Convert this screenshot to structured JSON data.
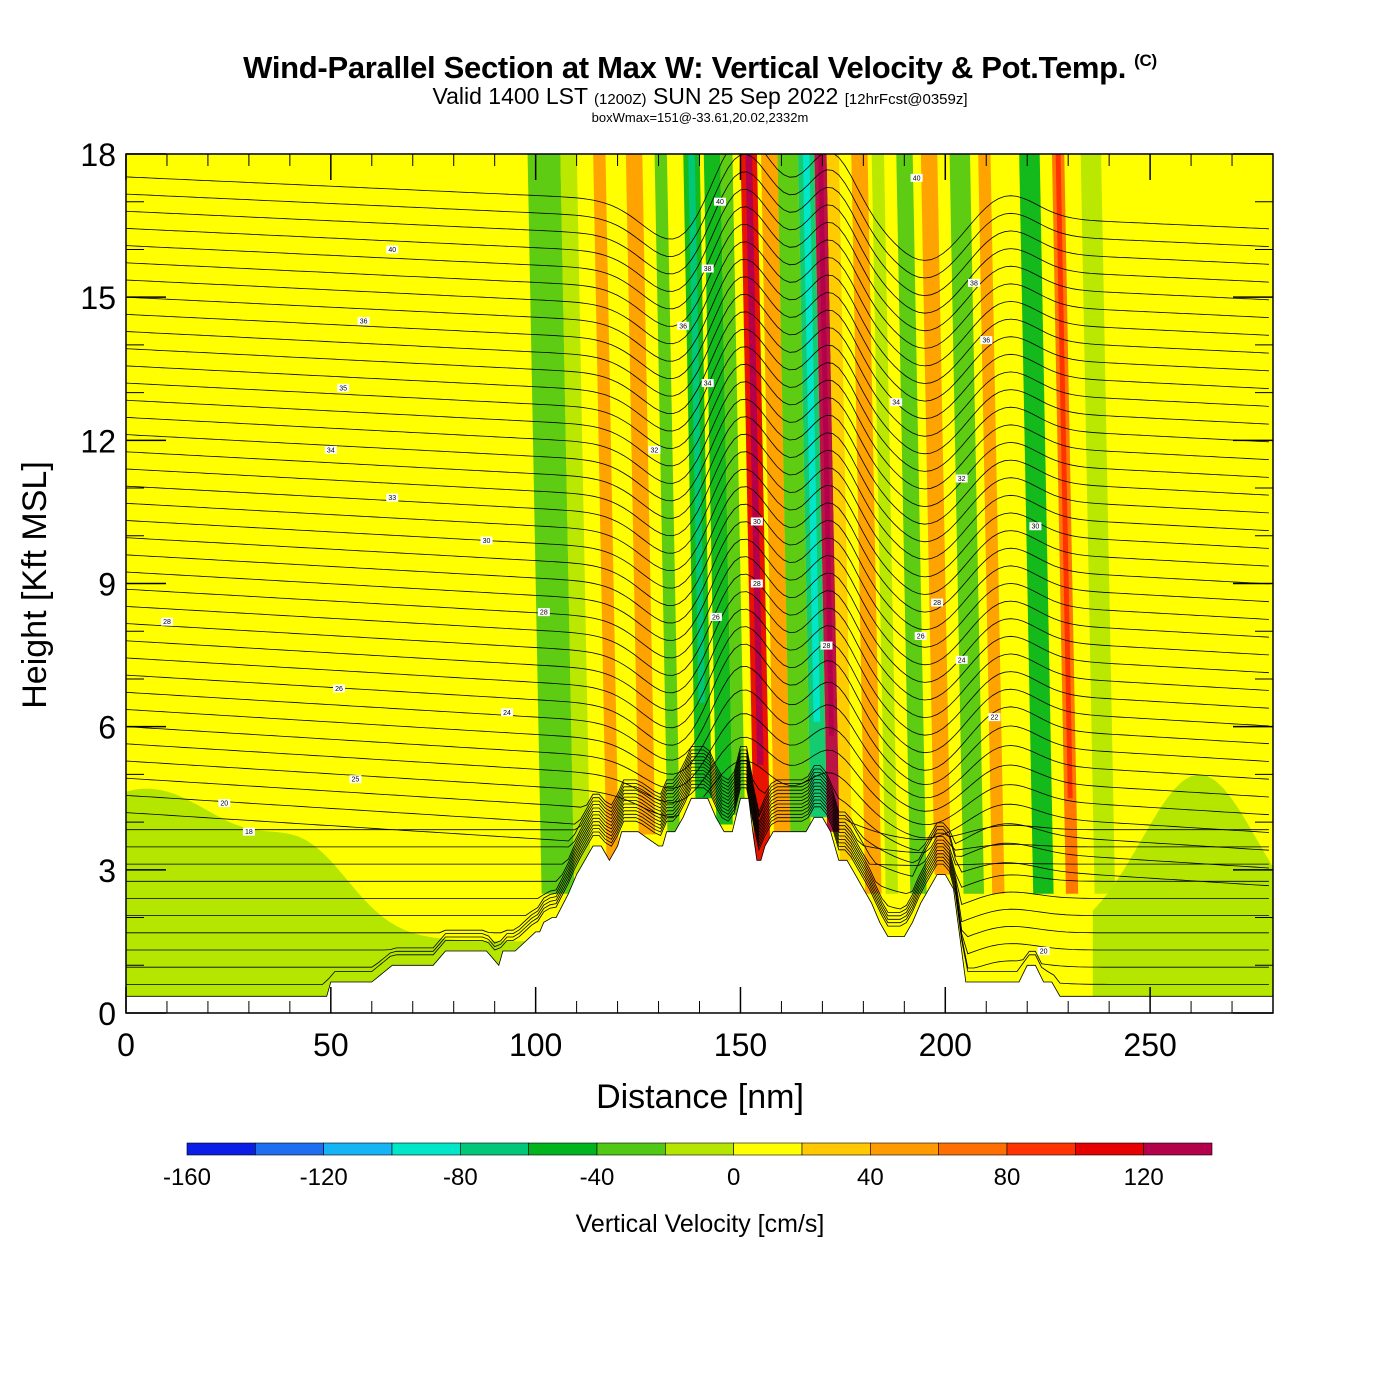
{
  "header": {
    "title": "Wind-Parallel Section at Max W: Vertical Velocity & Pot.Temp.",
    "copyright": "(C)",
    "valid_prefix": "Valid 1400 LST",
    "valid_zulu": "(1200Z)",
    "valid_date": "SUN 25 Sep 2022",
    "forecast": "[12hrFcst@0359z]",
    "box_info": "boxWmax=151@-33.61,20.02,2332m"
  },
  "chart_data": {
    "type": "heatmap",
    "title": "Wind-Parallel Section at Max W: Vertical Velocity & Pot.Temp.",
    "xlabel": "Distance [nm]",
    "ylabel": "Height [Kft MSL]",
    "xlim": [
      0,
      280
    ],
    "ylim": [
      0,
      18
    ],
    "x_ticks": [
      0,
      50,
      100,
      150,
      200,
      250
    ],
    "y_ticks": [
      0,
      3,
      6,
      9,
      12,
      15,
      18
    ],
    "colorbar": {
      "title": "Vertical Velocity [cm/s]",
      "boundaries": [
        -160,
        -140,
        -120,
        -100,
        -80,
        -60,
        -40,
        -20,
        0,
        20,
        40,
        60,
        80,
        100,
        120,
        140
      ],
      "tick_labels": [
        "-160",
        "-120",
        "-80",
        "-40",
        "0",
        "40",
        "80",
        "120"
      ],
      "tick_values": [
        -160,
        -120,
        -80,
        -40,
        0,
        40,
        80,
        120
      ],
      "colors": [
        "#0a1ee6",
        "#1e6ef0",
        "#14b4f5",
        "#00e6c8",
        "#00c878",
        "#00b41e",
        "#50c814",
        "#b4e600",
        "#ffff00",
        "#ffc800",
        "#ff9b00",
        "#ff6e00",
        "#ff3200",
        "#e60000",
        "#b4004b"
      ]
    },
    "velocity_bands": [
      {
        "x": 102,
        "width": 8,
        "value": -40
      },
      {
        "x": 110,
        "width": 4,
        "value": -10
      },
      {
        "x": 118,
        "width": 3,
        "value": 40
      },
      {
        "x": 126,
        "width": 4,
        "value": 50
      },
      {
        "x": 133,
        "width": 3,
        "value": -30
      },
      {
        "x": 140,
        "width": 4,
        "value": -60
      },
      {
        "x": 145,
        "width": 4,
        "value": -50
      },
      {
        "x": 149,
        "width": 3,
        "value": -30
      },
      {
        "x": 154,
        "width": 4,
        "value": 110
      },
      {
        "x": 159,
        "width": 4,
        "value": 50
      },
      {
        "x": 163,
        "width": 5,
        "value": -40
      },
      {
        "x": 168,
        "width": 4,
        "value": -80
      },
      {
        "x": 172,
        "width": 3,
        "value": 120
      },
      {
        "x": 175,
        "width": 3,
        "value": 30
      },
      {
        "x": 181,
        "width": 4,
        "value": 50
      },
      {
        "x": 186,
        "width": 3,
        "value": -20
      },
      {
        "x": 192,
        "width": 4,
        "value": -40
      },
      {
        "x": 198,
        "width": 4,
        "value": 40
      },
      {
        "x": 205,
        "width": 5,
        "value": -40
      },
      {
        "x": 212,
        "width": 3,
        "value": 50
      },
      {
        "x": 222,
        "width": 5,
        "value": -50
      },
      {
        "x": 230,
        "width": 3,
        "value": 60
      },
      {
        "x": 237,
        "width": 5,
        "value": -20
      }
    ],
    "terrain": {
      "x": [
        0,
        49,
        50,
        54,
        57,
        60,
        65,
        70,
        75,
        78,
        80,
        85,
        88,
        91,
        92,
        95,
        100,
        101,
        102,
        104,
        105,
        108,
        110,
        112,
        114,
        115,
        116,
        118,
        120,
        121,
        122,
        125,
        130,
        131,
        132,
        134,
        136,
        138,
        140,
        142,
        144,
        146,
        148,
        150,
        151,
        152,
        153,
        154,
        155,
        156,
        158,
        160,
        162,
        164,
        166,
        168,
        170,
        172,
        174,
        176,
        178,
        180,
        182,
        184,
        186,
        188,
        190,
        192,
        194,
        196,
        198,
        200,
        202,
        204,
        205,
        206,
        210,
        215,
        218,
        220,
        222,
        224,
        226,
        228,
        230,
        232,
        280
      ],
      "height": [
        0.35,
        0.35,
        0.65,
        0.65,
        0.65,
        0.65,
        1.0,
        1.0,
        1.0,
        1.3,
        1.3,
        1.3,
        1.3,
        1.0,
        1.3,
        1.3,
        1.7,
        1.7,
        1.9,
        2.0,
        2.0,
        2.5,
        2.9,
        3.2,
        3.5,
        3.5,
        3.5,
        3.2,
        3.5,
        3.8,
        3.8,
        3.8,
        3.5,
        3.5,
        3.8,
        3.8,
        4.1,
        4.5,
        4.5,
        4.5,
        4.1,
        3.8,
        3.8,
        4.5,
        4.5,
        4.5,
        3.8,
        3.2,
        3.2,
        3.5,
        3.8,
        3.8,
        3.8,
        3.8,
        3.8,
        4.1,
        4.1,
        3.8,
        3.2,
        3.2,
        2.9,
        2.6,
        2.3,
        1.9,
        1.6,
        1.6,
        1.6,
        1.9,
        2.3,
        2.6,
        2.9,
        2.9,
        2.6,
        1.3,
        0.65,
        0.65,
        0.65,
        0.65,
        0.65,
        1.0,
        1.0,
        0.65,
        0.65,
        0.35,
        0.35,
        0.35,
        0.35
      ]
    },
    "isentrope_labels": [
      {
        "x": 65,
        "y": 16.0,
        "text": "40"
      },
      {
        "x": 58,
        "y": 14.5,
        "text": "36"
      },
      {
        "x": 53,
        "y": 13.1,
        "text": "35"
      },
      {
        "x": 50,
        "y": 11.8,
        "text": "34"
      },
      {
        "x": 65,
        "y": 10.8,
        "text": "33"
      },
      {
        "x": 88,
        "y": 9.9,
        "text": "30"
      },
      {
        "x": 102,
        "y": 8.4,
        "text": "28"
      },
      {
        "x": 10,
        "y": 8.2,
        "text": "28"
      },
      {
        "x": 52,
        "y": 6.8,
        "text": "26"
      },
      {
        "x": 93,
        "y": 6.3,
        "text": "24"
      },
      {
        "x": 56,
        "y": 4.9,
        "text": "25"
      },
      {
        "x": 24,
        "y": 4.4,
        "text": "20"
      },
      {
        "x": 30,
        "y": 3.8,
        "text": "18"
      },
      {
        "x": 145,
        "y": 17.0,
        "text": "40"
      },
      {
        "x": 142,
        "y": 15.6,
        "text": "38"
      },
      {
        "x": 136,
        "y": 14.4,
        "text": "36"
      },
      {
        "x": 142,
        "y": 13.2,
        "text": "34"
      },
      {
        "x": 129,
        "y": 11.8,
        "text": "32"
      },
      {
        "x": 154,
        "y": 10.3,
        "text": "30"
      },
      {
        "x": 154,
        "y": 9.0,
        "text": "28"
      },
      {
        "x": 144,
        "y": 8.3,
        "text": "26"
      },
      {
        "x": 171,
        "y": 7.7,
        "text": "28"
      },
      {
        "x": 193,
        "y": 17.5,
        "text": "40"
      },
      {
        "x": 207,
        "y": 15.3,
        "text": "38"
      },
      {
        "x": 210,
        "y": 14.1,
        "text": "36"
      },
      {
        "x": 188,
        "y": 12.8,
        "text": "34"
      },
      {
        "x": 204,
        "y": 11.2,
        "text": "32"
      },
      {
        "x": 222,
        "y": 10.2,
        "text": "30"
      },
      {
        "x": 198,
        "y": 8.6,
        "text": "28"
      },
      {
        "x": 194,
        "y": 7.9,
        "text": "26"
      },
      {
        "x": 204,
        "y": 7.4,
        "text": "24"
      },
      {
        "x": 212,
        "y": 6.2,
        "text": "22"
      },
      {
        "x": 224,
        "y": 1.3,
        "text": "20"
      }
    ]
  }
}
